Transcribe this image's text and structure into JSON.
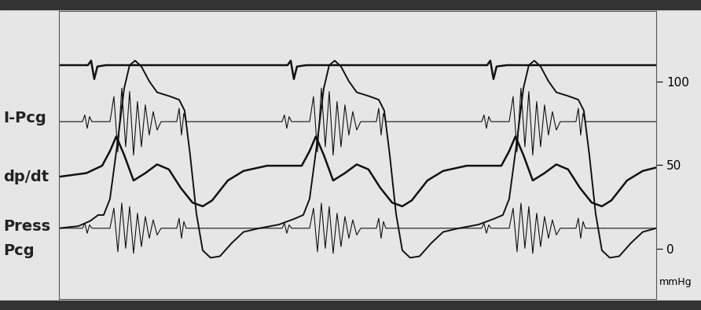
{
  "chart_data": {
    "type": "line",
    "series": [
      {
        "color": "#111111",
        "x": [
          0,
          37,
          41,
          45,
          49,
          60,
          291,
          295,
          299,
          303,
          315,
          545,
          549,
          553,
          557,
          570,
          760
        ],
        "values": [
          109.6,
          109.6,
          112.3,
          101.3,
          108.8,
          109.6,
          109.6,
          112.3,
          101.3,
          108.8,
          109.6,
          109.6,
          112.3,
          101.3,
          108.8,
          109.6,
          109.6
        ]
      },
      {
        "name": "I-Pcg",
        "color": "#111111",
        "x": [
          0,
          30,
          33,
          36,
          39,
          42,
          65,
          70,
          75,
          80,
          85,
          90,
          95,
          100,
          105,
          110,
          115,
          120,
          125,
          130,
          150,
          153,
          156,
          159,
          162,
          225,
          254,
          284,
          287,
          290,
          293,
          296,
          319,
          324,
          329,
          334,
          339,
          344,
          349,
          354,
          359,
          364,
          369,
          374,
          379,
          384,
          404,
          407,
          410,
          413,
          416,
          479,
          508,
          538,
          541,
          544,
          547,
          550,
          573,
          578,
          583,
          588,
          593,
          598,
          603,
          608,
          613,
          618,
          623,
          628,
          633,
          638,
          658,
          661,
          664,
          667,
          670,
          733,
          760
        ],
        "values": [
          75.9,
          75.9,
          79.9,
          71.9,
          78.9,
          75.9,
          75.9,
          90.9,
          57.9,
          95.9,
          60.9,
          93.9,
          55.9,
          87.9,
          60.9,
          85.9,
          67.9,
          81.9,
          70.9,
          75.9,
          75.9,
          83.9,
          67.9,
          80.9,
          75.9,
          75.9,
          75.9,
          75.9,
          79.9,
          71.9,
          78.9,
          75.9,
          75.9,
          90.9,
          57.9,
          95.9,
          60.9,
          93.9,
          55.9,
          87.9,
          60.9,
          85.9,
          67.9,
          81.9,
          70.9,
          75.9,
          75.9,
          83.9,
          67.9,
          80.9,
          75.9,
          75.9,
          75.9,
          75.9,
          79.9,
          71.9,
          78.9,
          75.9,
          75.9,
          90.9,
          57.9,
          95.9,
          60.9,
          93.9,
          55.9,
          87.9,
          60.9,
          85.9,
          67.9,
          81.9,
          70.9,
          75.9,
          75.9,
          83.9,
          67.9,
          80.9,
          75.9,
          75.9,
          75.9
        ]
      },
      {
        "name": "dp/dt",
        "color": "#111111",
        "x": [
          0,
          35,
          55,
          65,
          73,
          83,
          95,
          110,
          125,
          140,
          155,
          170,
          183,
          195,
          215,
          235,
          265,
          300,
          309,
          319,
          327,
          337,
          349,
          364,
          379,
          394,
          409,
          424,
          437,
          449,
          469,
          489,
          519,
          554,
          563,
          573,
          581,
          591,
          603,
          618,
          633,
          648,
          663,
          678,
          691,
          703,
          723,
          743,
          760
        ],
        "values": [
          43,
          45.2,
          49.6,
          58.3,
          67.1,
          56.1,
          40.8,
          45.2,
          50.4,
          47.4,
          36.4,
          27.6,
          25.4,
          28.9,
          40.8,
          46.5,
          49.6,
          49.6,
          49.6,
          58.3,
          67.1,
          56.1,
          40.8,
          45.2,
          50.4,
          47.4,
          36.4,
          27.6,
          25.4,
          28.9,
          40.8,
          46.5,
          49.6,
          49.6,
          49.6,
          58.3,
          67.1,
          56.1,
          40.8,
          45.2,
          50.4,
          47.4,
          36.4,
          27.6,
          25.4,
          28.9,
          40.8,
          46.5,
          48.5
        ]
      },
      {
        "name": "Press",
        "color": "#111111",
        "x": [
          0,
          25,
          40,
          50,
          57,
          65,
          75,
          83,
          90,
          97,
          105,
          115,
          125,
          140,
          153,
          160,
          167,
          175,
          183,
          193,
          205,
          220,
          235,
          255,
          280,
          300,
          311,
          319,
          329,
          337,
          344,
          351,
          359,
          369,
          379,
          394,
          407,
          414,
          421,
          429,
          437,
          447,
          459,
          474,
          489,
          509,
          534,
          554,
          565,
          573,
          583,
          591,
          598,
          605,
          613,
          623,
          633,
          648,
          661,
          668,
          675,
          683,
          691,
          701,
          713,
          728,
          743,
          760
        ],
        "values": [
          12.3,
          13.6,
          16.7,
          20.2,
          20.2,
          29.8,
          64.9,
          95.6,
          109.6,
          112.3,
          108.8,
          100,
          93.4,
          91.2,
          89,
          82.5,
          56.1,
          21.1,
          -0.9,
          -5.3,
          -4.4,
          3.5,
          10.1,
          12.3,
          14.5,
          18,
          20.2,
          29.8,
          64.9,
          95.6,
          109.6,
          112.3,
          108.8,
          100,
          93.4,
          91.2,
          89,
          82.5,
          56.1,
          21.1,
          -0.9,
          -5.3,
          -4.4,
          3.5,
          10.1,
          12.3,
          14.5,
          18,
          20.2,
          29.8,
          64.9,
          95.6,
          109.6,
          112.3,
          108.8,
          100,
          93.4,
          91.2,
          89,
          82.5,
          56.1,
          21.1,
          -0.9,
          -5.3,
          -4.4,
          3.5,
          10.1,
          12.3
        ]
      },
      {
        "name": "Pcg",
        "color": "#111111",
        "x": [
          0,
          30,
          33,
          36,
          39,
          42,
          65,
          70,
          75,
          80,
          85,
          90,
          95,
          100,
          105,
          110,
          115,
          120,
          125,
          130,
          150,
          153,
          156,
          159,
          162,
          225,
          254,
          284,
          287,
          290,
          293,
          296,
          319,
          324,
          329,
          334,
          339,
          344,
          349,
          354,
          359,
          364,
          369,
          374,
          379,
          384,
          404,
          407,
          410,
          413,
          416,
          479,
          508,
          538,
          541,
          544,
          547,
          550,
          573,
          578,
          583,
          588,
          593,
          598,
          603,
          608,
          613,
          618,
          623,
          628,
          633,
          638,
          658,
          661,
          664,
          667,
          670,
          733,
          760
        ],
        "values": [
          12.3,
          12.3,
          15.3,
          9.3,
          14.3,
          12.3,
          12.3,
          24.3,
          -1.7,
          27.3,
          0.3,
          25.3,
          -2.7,
          21.3,
          1.3,
          19.3,
          6.3,
          17.3,
          8.3,
          12.3,
          12.3,
          18.3,
          6.3,
          16.3,
          12.3,
          12.3,
          12.3,
          12.3,
          15.3,
          9.3,
          14.3,
          12.3,
          12.3,
          24.3,
          -1.7,
          27.3,
          0.3,
          25.3,
          -2.7,
          21.3,
          1.3,
          19.3,
          6.3,
          17.3,
          8.3,
          12.3,
          12.3,
          18.3,
          6.3,
          16.3,
          12.3,
          12.3,
          12.3,
          12.3,
          15.3,
          9.3,
          14.3,
          12.3,
          12.3,
          24.3,
          -1.7,
          27.3,
          0.3,
          25.3,
          -2.7,
          21.3,
          1.3,
          19.3,
          6.3,
          17.3,
          8.3,
          12.3,
          12.3,
          18.3,
          6.3,
          16.3,
          12.3,
          12.3,
          12.3
        ]
      }
    ],
    "y_unit": "mmHg",
    "xlim": [
      0,
      760
    ],
    "xticks": [],
    "ylim": [
      -30,
      142
    ],
    "yticks": [
      0,
      50,
      100
    ],
    "tick_labels": "y",
    "grid": false
  }
}
